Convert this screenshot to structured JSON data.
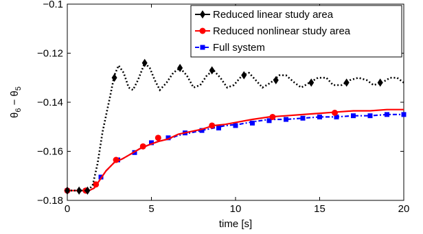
{
  "chart_data": {
    "type": "line",
    "title": "",
    "xlabel": "time [s]",
    "ylabel_main": "θ",
    "ylabel_sub_a": "6",
    "ylabel_minus": " − ",
    "ylabel_main_b": "θ",
    "ylabel_sub_b": "5",
    "xlim": [
      0,
      20
    ],
    "ylim": [
      -0.18,
      -0.1
    ],
    "xticks": [
      0,
      5,
      10,
      15,
      20
    ],
    "xtick_labels": [
      "0",
      "5",
      "10",
      "15",
      "20"
    ],
    "yticks": [
      -0.18,
      -0.16,
      -0.14,
      -0.12,
      -0.1
    ],
    "ytick_labels": [
      "−0.18",
      "−0.16",
      "−0.14",
      "−0.12",
      "−0.1"
    ],
    "grid": false,
    "legend_position": "top-right",
    "series": [
      {
        "name": "Reduced linear study area",
        "color": "#000000",
        "line_style": "dotted",
        "marker": "diamond",
        "line": [
          [
            0,
            -0.176
          ],
          [
            0.7,
            -0.176
          ],
          [
            1.2,
            -0.176
          ],
          [
            1.5,
            -0.174
          ],
          [
            1.8,
            -0.165
          ],
          [
            2.1,
            -0.152
          ],
          [
            2.5,
            -0.139
          ],
          [
            2.8,
            -0.129
          ],
          [
            3.05,
            -0.125
          ],
          [
            3.35,
            -0.128
          ],
          [
            3.65,
            -0.134
          ],
          [
            3.9,
            -0.135
          ],
          [
            4.2,
            -0.131
          ],
          [
            4.6,
            -0.124
          ],
          [
            4.9,
            -0.126
          ],
          [
            5.2,
            -0.131
          ],
          [
            5.5,
            -0.135
          ],
          [
            5.9,
            -0.132
          ],
          [
            6.3,
            -0.128
          ],
          [
            6.7,
            -0.126
          ],
          [
            7.1,
            -0.129
          ],
          [
            7.5,
            -0.134
          ],
          [
            7.9,
            -0.133
          ],
          [
            8.3,
            -0.129
          ],
          [
            8.7,
            -0.127
          ],
          [
            9.1,
            -0.13
          ],
          [
            9.5,
            -0.134
          ],
          [
            9.9,
            -0.133
          ],
          [
            10.4,
            -0.129
          ],
          [
            10.8,
            -0.128
          ],
          [
            11.2,
            -0.131
          ],
          [
            11.6,
            -0.134
          ],
          [
            12.1,
            -0.132
          ],
          [
            12.6,
            -0.129
          ],
          [
            13.0,
            -0.129
          ],
          [
            13.5,
            -0.132
          ],
          [
            13.9,
            -0.134
          ],
          [
            14.4,
            -0.132
          ],
          [
            14.9,
            -0.13
          ],
          [
            15.4,
            -0.13
          ],
          [
            15.8,
            -0.133
          ],
          [
            16.3,
            -0.133
          ],
          [
            16.8,
            -0.131
          ],
          [
            17.3,
            -0.13
          ],
          [
            17.8,
            -0.131
          ],
          [
            18.2,
            -0.133
          ],
          [
            18.7,
            -0.132
          ],
          [
            19.2,
            -0.13
          ],
          [
            19.6,
            -0.13
          ],
          [
            20,
            -0.132
          ]
        ],
        "markers": [
          [
            0,
            -0.176
          ],
          [
            0.7,
            -0.176
          ],
          [
            1.2,
            -0.176
          ],
          [
            2.8,
            -0.13
          ],
          [
            4.6,
            -0.124
          ],
          [
            6.7,
            -0.126
          ],
          [
            8.6,
            -0.127
          ],
          [
            10.5,
            -0.129
          ],
          [
            12.4,
            -0.131
          ],
          [
            14.5,
            -0.132
          ],
          [
            16.6,
            -0.132
          ],
          [
            18.6,
            -0.132
          ]
        ]
      },
      {
        "name": "Reduced nonlinear study area",
        "color": "#ff0000",
        "line_style": "solid",
        "marker": "circle",
        "line": [
          [
            0,
            -0.176
          ],
          [
            1.3,
            -0.176
          ],
          [
            1.6,
            -0.175
          ],
          [
            1.9,
            -0.172
          ],
          [
            2.3,
            -0.168
          ],
          [
            2.8,
            -0.1645
          ],
          [
            3.3,
            -0.163
          ],
          [
            3.8,
            -0.161
          ],
          [
            4.3,
            -0.159
          ],
          [
            4.8,
            -0.1575
          ],
          [
            5.4,
            -0.156
          ],
          [
            6.0,
            -0.155
          ],
          [
            6.6,
            -0.153
          ],
          [
            7.3,
            -0.152
          ],
          [
            8.0,
            -0.151
          ],
          [
            8.7,
            -0.1495
          ],
          [
            9.4,
            -0.149
          ],
          [
            10.2,
            -0.148
          ],
          [
            11.0,
            -0.147
          ],
          [
            12.0,
            -0.146
          ],
          [
            13.0,
            -0.1455
          ],
          [
            14.0,
            -0.145
          ],
          [
            15.0,
            -0.1445
          ],
          [
            16.0,
            -0.144
          ],
          [
            17.0,
            -0.1435
          ],
          [
            18.0,
            -0.1435
          ],
          [
            19.0,
            -0.143
          ],
          [
            20,
            -0.143
          ]
        ],
        "markers": [
          [
            0,
            -0.176
          ],
          [
            1.1,
            -0.176
          ],
          [
            1.7,
            -0.1735
          ],
          [
            2.9,
            -0.1635
          ],
          [
            4.5,
            -0.158
          ],
          [
            5.4,
            -0.1545
          ],
          [
            8.6,
            -0.1495
          ],
          [
            12.2,
            -0.146
          ],
          [
            15.9,
            -0.1443
          ]
        ]
      },
      {
        "name": "Full system",
        "color": "#0000ff",
        "line_style": "dashdot",
        "marker": "square",
        "line": [
          [
            0,
            -0.176
          ],
          [
            1.3,
            -0.176
          ],
          [
            1.6,
            -0.175
          ],
          [
            1.9,
            -0.172
          ],
          [
            2.3,
            -0.168
          ],
          [
            2.8,
            -0.1645
          ],
          [
            3.3,
            -0.163
          ],
          [
            3.8,
            -0.161
          ],
          [
            4.3,
            -0.159
          ],
          [
            4.8,
            -0.1575
          ],
          [
            5.4,
            -0.156
          ],
          [
            6.0,
            -0.155
          ],
          [
            6.6,
            -0.1535
          ],
          [
            7.3,
            -0.1525
          ],
          [
            8.0,
            -0.1515
          ],
          [
            8.7,
            -0.1505
          ],
          [
            9.4,
            -0.1495
          ],
          [
            10.2,
            -0.149
          ],
          [
            11.0,
            -0.148
          ],
          [
            12.0,
            -0.147
          ],
          [
            13.0,
            -0.147
          ],
          [
            14.0,
            -0.1465
          ],
          [
            15.0,
            -0.146
          ],
          [
            16.0,
            -0.146
          ],
          [
            17.0,
            -0.1455
          ],
          [
            18.0,
            -0.1455
          ],
          [
            19.0,
            -0.145
          ],
          [
            20,
            -0.145
          ]
        ],
        "markers": [
          [
            0,
            -0.176
          ],
          [
            1.1,
            -0.176
          ],
          [
            2.0,
            -0.1705
          ],
          [
            3.0,
            -0.1635
          ],
          [
            4.0,
            -0.1605
          ],
          [
            5.0,
            -0.1565
          ],
          [
            6.0,
            -0.1545
          ],
          [
            7.0,
            -0.1525
          ],
          [
            8.0,
            -0.1515
          ],
          [
            9.0,
            -0.1505
          ],
          [
            10.0,
            -0.1495
          ],
          [
            11.0,
            -0.1485
          ],
          [
            12.0,
            -0.1475
          ],
          [
            13.0,
            -0.147
          ],
          [
            14.0,
            -0.1465
          ],
          [
            15.0,
            -0.146
          ],
          [
            16.0,
            -0.146
          ],
          [
            17.0,
            -0.1455
          ],
          [
            18.0,
            -0.1455
          ],
          [
            19.0,
            -0.145
          ],
          [
            20.0,
            -0.145
          ]
        ]
      }
    ]
  }
}
